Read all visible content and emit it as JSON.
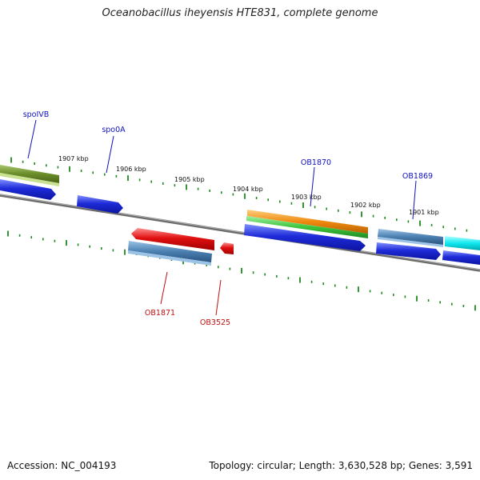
{
  "title": "Oceanobacillus iheyensis HTE831, complete genome",
  "accession": "Accession: NC_004193",
  "summary": "Topology: circular; Length: 3,630,528 bp; Genes: 3,591",
  "colors": {
    "backbone": "#808080",
    "tick": "#1f8a1f",
    "forward_label": "#1010c0",
    "reverse_label": "#c01010"
  },
  "kbp_labels": [
    "1907 kbp",
    "1906 kbp",
    "1905 kbp",
    "1904 kbp",
    "1903 kbp",
    "1902 kbp",
    "1901 kbp"
  ],
  "genes_forward": [
    {
      "label": "spoIVB",
      "color": "#1e2bd8"
    },
    {
      "label": "spo0A",
      "color": "#1e2bd8"
    },
    {
      "label": "OB1870",
      "color": "#1e2bd8"
    },
    {
      "label": "OB1869",
      "color": "#1e2bd8"
    }
  ],
  "genes_reverse": [
    {
      "label": "OB1871",
      "color": "#e01010"
    },
    {
      "label": "OB3525",
      "color": "#e01010"
    }
  ],
  "features": [
    {
      "name": "olive-feature",
      "color": "#6b8c2a"
    },
    {
      "name": "orange-feature",
      "color": "#f08a10"
    },
    {
      "name": "green-feature",
      "color": "#3cc43c"
    },
    {
      "name": "steelblue-feature-upper",
      "color": "#4a7fb0"
    },
    {
      "name": "steelblue-feature-lower",
      "color": "#4a7fb0"
    },
    {
      "name": "cyan-feature",
      "color": "#10e8f0"
    }
  ]
}
